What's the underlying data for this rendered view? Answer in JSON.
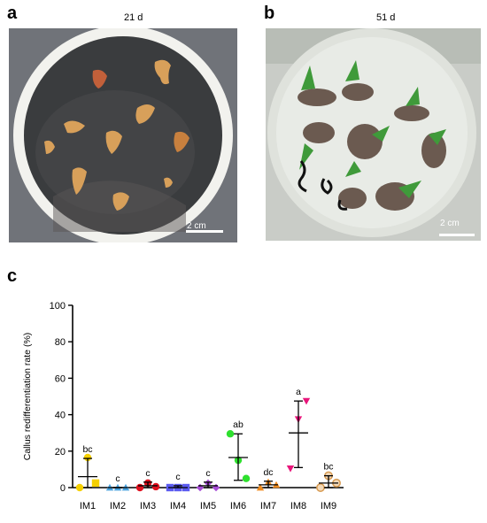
{
  "panels": {
    "a": {
      "letter": "a",
      "day_label": "21 d",
      "scale_label": "2 cm"
    },
    "b": {
      "letter": "b",
      "day_label": "51 d",
      "scale_label": "2 cm"
    },
    "c": {
      "letter": "c"
    }
  },
  "colors": {
    "IM1": "#f5d000",
    "IM2": "#4aa3df",
    "IM3": "#e0101e",
    "IM4": "#5b5bf0",
    "IM5": "#a64bd6",
    "IM6": "#2ee02e",
    "IM7": "#f08c20",
    "IM8": "#e8157a",
    "IM9": "#d79a50"
  },
  "chart_data": {
    "type": "scatter",
    "ylabel": "Callus redifferentiation rate (%)",
    "xlabel": "",
    "ylim": [
      0,
      100
    ],
    "yticks": [
      0,
      20,
      40,
      60,
      80,
      100
    ],
    "categories": [
      "IM1",
      "IM2",
      "IM3",
      "IM4",
      "IM5",
      "IM6",
      "IM7",
      "IM8",
      "IM9"
    ],
    "means": [
      6,
      0,
      1,
      0,
      1,
      16.5,
      1.5,
      30,
      2.5
    ],
    "error_high": [
      16,
      0,
      3,
      1,
      3,
      29.5,
      3.5,
      47.5,
      6.5
    ],
    "error_low": [
      0,
      0,
      0,
      0,
      0,
      4,
      0,
      11,
      0
    ],
    "points": [
      [
        0,
        16.5,
        2.5
      ],
      [
        0,
        0,
        0
      ],
      [
        0,
        2.5,
        0.5
      ],
      [
        0,
        0,
        0
      ],
      [
        0,
        2.5,
        0
      ],
      [
        29.5,
        15,
        5
      ],
      [
        0,
        3,
        1.5
      ],
      [
        10.5,
        37.5,
        47.5
      ],
      [
        0,
        6.5,
        2.5
      ]
    ],
    "markers": [
      "circle-square",
      "triangle-up",
      "circle",
      "square",
      "diamond",
      "circle",
      "triangle-up",
      "triangle-down",
      "circle-hollow"
    ],
    "significance_letters": [
      "bc",
      "c",
      "c",
      "c",
      "c",
      "ab",
      "dc",
      "a",
      "bc"
    ]
  }
}
